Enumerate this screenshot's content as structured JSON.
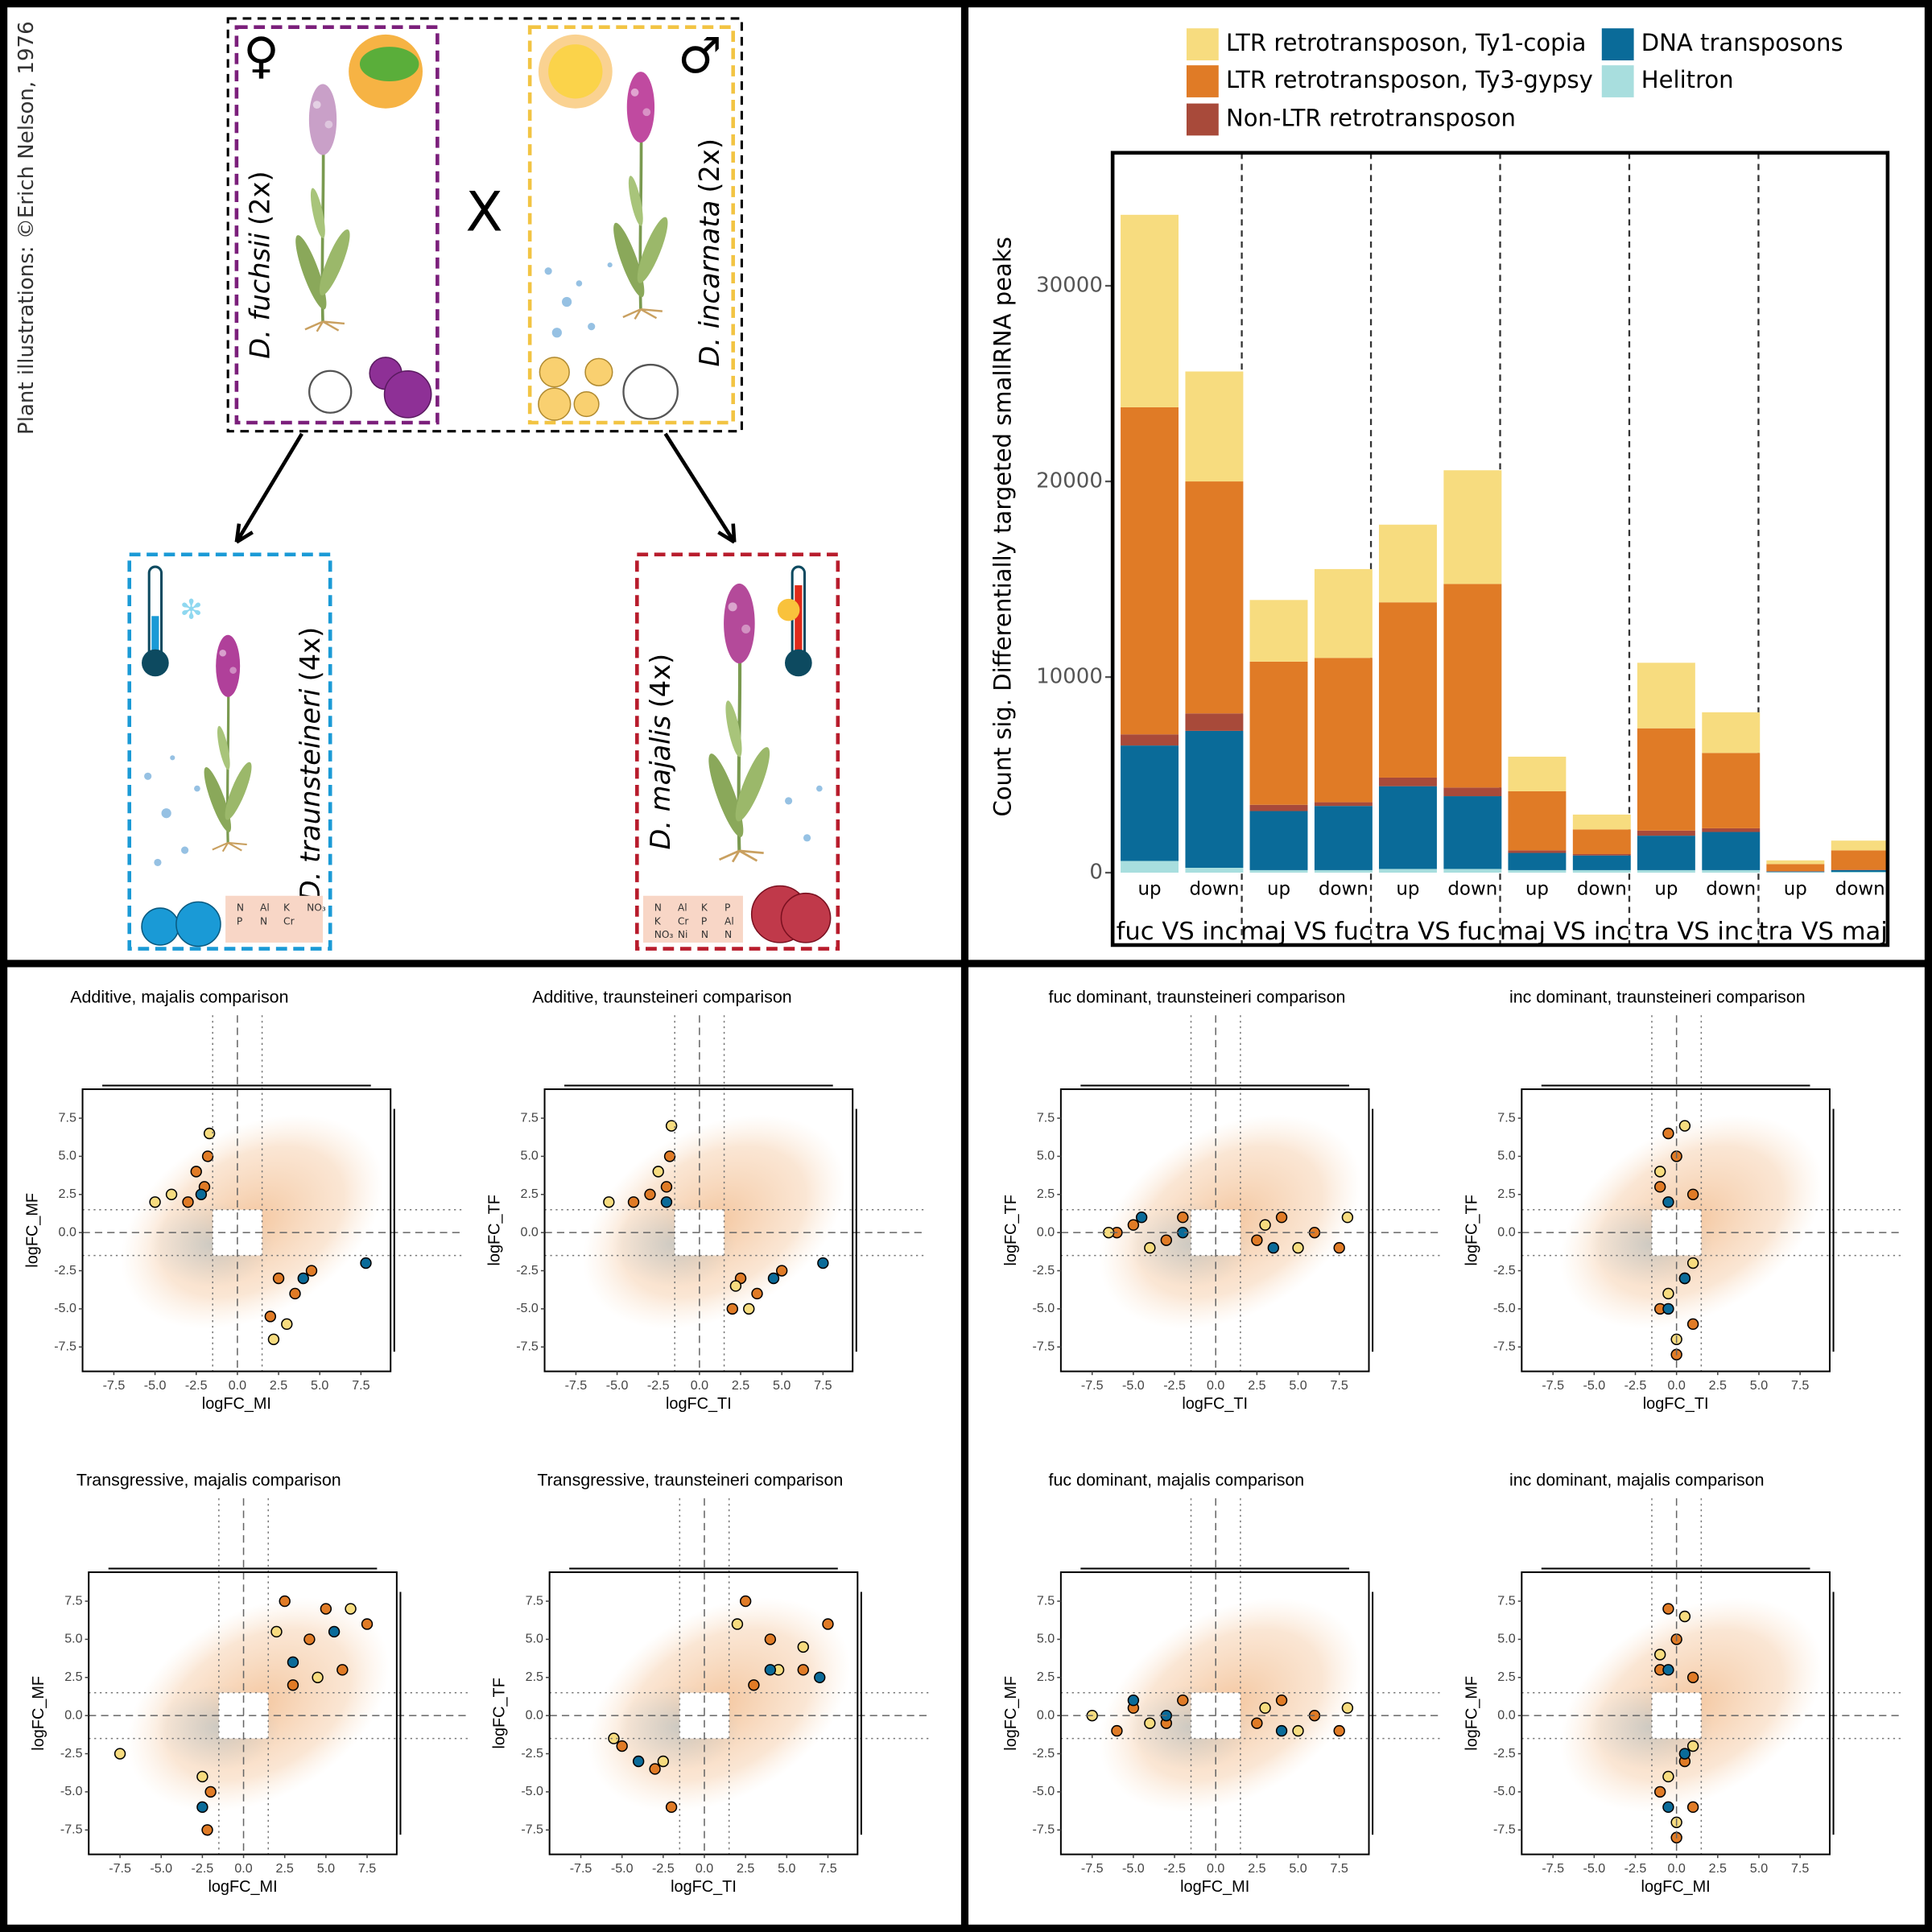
{
  "illustration": {
    "credit": "Plant illustrations: ©Erich Nelson, 1976",
    "female": "♀",
    "male": "♂",
    "cross": "X",
    "species": [
      {
        "name": "D. fuchsii",
        "ploidy": "(2x)"
      },
      {
        "name": "D. incarnata",
        "ploidy": "(2x)"
      },
      {
        "name": "D. traunsteineri",
        "ploidy": "(4x)"
      },
      {
        "name": "D. majalis",
        "ploidy": "(4x)"
      }
    ],
    "nutrients": [
      [
        "N",
        "Al",
        "K",
        "NO₃",
        "P",
        "N",
        "Cr"
      ],
      [
        "N",
        "Al",
        "K",
        "P",
        "K",
        "Cr",
        "P",
        "Al",
        "NO₃",
        "Ni",
        "N",
        "N"
      ]
    ]
  },
  "chart_data": [
    {
      "type": "bar",
      "stacked": true,
      "ylabel": "Count sig. Differentially targeted smallRNA peaks",
      "groups": [
        "fuc VS inc",
        "maj VS fuc",
        "tra VS fuc",
        "maj VS inc",
        "tra VS inc",
        "tra VS maj"
      ],
      "categories": [
        "up",
        "down",
        "up",
        "down",
        "up",
        "down",
        "up",
        "down",
        "up",
        "down",
        "up",
        "down"
      ],
      "ylim": [
        -3700,
        36800
      ],
      "yticks": [
        0,
        10000,
        20000,
        30000
      ],
      "series": [
        {
          "name": "Helitron",
          "color": "#a8dede",
          "values": [
            600,
            250,
            130,
            130,
            190,
            190,
            130,
            130,
            130,
            130,
            30,
            40
          ]
        },
        {
          "name": "DNA transposons",
          "color": "#0a6b99",
          "values": [
            5900,
            7000,
            3020,
            3280,
            4230,
            3720,
            880,
            750,
            1760,
            1950,
            30,
            90
          ]
        },
        {
          "name": "Non-LTR retrotransposon",
          "color": "#a84a3a",
          "values": [
            570,
            890,
            320,
            190,
            440,
            440,
            130,
            70,
            260,
            190,
            20,
            20
          ]
        },
        {
          "name": "LTR retrotransposon, Ty3-gypsy",
          "color": "#e07b26",
          "values": [
            16720,
            11860,
            7320,
            7380,
            8960,
            10410,
            3020,
            1260,
            5230,
            3850,
            360,
            990
          ]
        },
        {
          "name": "LTR retrotransposon, Ty1-copia",
          "color": "#f7dc7f",
          "values": [
            9840,
            5620,
            3150,
            4540,
            3970,
            5810,
            1770,
            760,
            3350,
            2080,
            190,
            500
          ]
        }
      ]
    },
    {
      "type": "scatter",
      "title": "Additive, majalis comparison",
      "xlabel": "logFC_MI",
      "ylabel": "logFC_MF",
      "xlim": [
        -9.4,
        9.3
      ],
      "ylim": [
        -9.1,
        9.4
      ],
      "xticks": [
        -7.5,
        {
          "value": -5,
          "label": "-5.0"
        },
        -2.5,
        {
          "value": 0,
          "label": "0.0"
        },
        2.5,
        {
          "value": 5,
          "label": "5.0"
        },
        7.5
      ],
      "yticks": [
        -7.5,
        {
          "value": -5,
          "label": "-5.0"
        },
        -2.5,
        {
          "value": 0,
          "label": "0.0"
        },
        2.5,
        {
          "value": 5,
          "label": "5.0"
        },
        7.5
      ],
      "threshold": 1.5,
      "series": [
        {
          "color": "#e07b26",
          "x": [
            -2,
            -3,
            -1.8,
            -2.5,
            2.5,
            3.5,
            2,
            4.5
          ],
          "values": [
            3,
            2,
            5,
            4,
            -3,
            -4,
            -5.5,
            -2.5
          ]
        },
        {
          "color": "#f7dc7f",
          "x": [
            -5,
            -4,
            -1.7,
            3,
            2.2
          ],
          "values": [
            2,
            2.5,
            6.5,
            -6,
            -7
          ]
        },
        {
          "color": "#0a6b99",
          "x": [
            -2.2,
            4,
            7.8
          ],
          "values": [
            2.5,
            -3,
            -2
          ]
        }
      ]
    },
    {
      "type": "scatter",
      "title": "Additive, traunsteineri comparison",
      "xlabel": "logFC_TI",
      "ylabel": "logFC_TF",
      "xlim": [
        -9.4,
        9.3
      ],
      "ylim": [
        -9.1,
        9.4
      ],
      "xticks": [
        -7.5,
        {
          "value": -5,
          "label": "-5.0"
        },
        -2.5,
        {
          "value": 0,
          "label": "0.0"
        },
        2.5,
        {
          "value": 5,
          "label": "5.0"
        },
        7.5
      ],
      "yticks": [
        -7.5,
        {
          "value": -5,
          "label": "-5.0"
        },
        -2.5,
        {
          "value": 0,
          "label": "0.0"
        },
        2.5,
        {
          "value": 5,
          "label": "5.0"
        },
        7.5
      ],
      "threshold": 1.5,
      "series": [
        {
          "color": "#e07b26",
          "x": [
            -2,
            -3,
            -1.8,
            -4,
            2.5,
            3.5,
            2,
            5
          ],
          "values": [
            3,
            2.5,
            5,
            2,
            -3,
            -4,
            -5,
            -2.5
          ]
        },
        {
          "color": "#f7dc7f",
          "x": [
            -5.5,
            -2.5,
            -1.7,
            3,
            2.2
          ],
          "values": [
            2,
            4,
            7,
            -5,
            -3.5
          ]
        },
        {
          "color": "#0a6b99",
          "x": [
            -2,
            4.5,
            7.5
          ],
          "values": [
            2,
            -3,
            -2
          ]
        }
      ]
    },
    {
      "type": "scatter",
      "title": "fuc dominant, traunsteineri comparison",
      "xlabel": "logFC_TI",
      "ylabel": "logFC_TF",
      "xlim": [
        -9.4,
        9.3
      ],
      "ylim": [
        -9.1,
        9.4
      ],
      "xticks": [
        -7.5,
        {
          "value": -5,
          "label": "-5.0"
        },
        -2.5,
        {
          "value": 0,
          "label": "0.0"
        },
        2.5,
        {
          "value": 5,
          "label": "5.0"
        },
        7.5
      ],
      "yticks": [
        -7.5,
        {
          "value": -5,
          "label": "-5.0"
        },
        -2.5,
        {
          "value": 0,
          "label": "0.0"
        },
        2.5,
        {
          "value": 5,
          "label": "5.0"
        },
        7.5
      ],
      "threshold": 1.5,
      "series": [
        {
          "color": "#e07b26",
          "x": [
            -5,
            -3,
            -2,
            -6,
            2.5,
            4,
            6,
            7.5
          ],
          "values": [
            0.5,
            -0.5,
            1,
            0,
            -0.5,
            1,
            0,
            -1
          ]
        },
        {
          "color": "#f7dc7f",
          "x": [
            -6.5,
            -4,
            3,
            5,
            8
          ],
          "values": [
            0,
            -1,
            0.5,
            -1,
            1
          ]
        },
        {
          "color": "#0a6b99",
          "x": [
            -2,
            -4.5,
            3.5
          ],
          "values": [
            0,
            1,
            -1
          ]
        }
      ]
    },
    {
      "type": "scatter",
      "title": "inc dominant, traunsteineri comparison",
      "xlabel": "logFC_TI",
      "ylabel": "logFC_TF",
      "xlim": [
        -9.4,
        9.3
      ],
      "ylim": [
        -9.1,
        9.4
      ],
      "xticks": [
        -7.5,
        {
          "value": -5,
          "label": "-5.0"
        },
        -2.5,
        {
          "value": 0,
          "label": "0.0"
        },
        2.5,
        {
          "value": 5,
          "label": "5.0"
        },
        7.5
      ],
      "yticks": [
        -7.5,
        {
          "value": -5,
          "label": "-5.0"
        },
        -2.5,
        {
          "value": 0,
          "label": "0.0"
        },
        2.5,
        {
          "value": 5,
          "label": "5.0"
        },
        7.5
      ],
      "threshold": 1.5,
      "series": [
        {
          "color": "#e07b26",
          "x": [
            -1,
            0,
            1,
            -0.5,
            0.5,
            -1,
            1,
            0
          ],
          "values": [
            3,
            5,
            2.5,
            6.5,
            -3,
            -5,
            -6,
            -8
          ]
        },
        {
          "color": "#f7dc7f",
          "x": [
            0.5,
            -1,
            1,
            -0.5,
            0
          ],
          "values": [
            7,
            4,
            -2,
            -4,
            -7
          ]
        },
        {
          "color": "#0a6b99",
          "x": [
            -0.5,
            0.5,
            -0.5
          ],
          "values": [
            2,
            -3,
            -5
          ]
        }
      ]
    },
    {
      "type": "scatter",
      "title": "Transgressive, majalis comparison",
      "xlabel": "logFC_MI",
      "ylabel": "logFC_MF",
      "xlim": [
        -9.4,
        9.3
      ],
      "ylim": [
        -9.1,
        9.4
      ],
      "xticks": [
        -7.5,
        {
          "value": -5,
          "label": "-5.0"
        },
        -2.5,
        {
          "value": 0,
          "label": "0.0"
        },
        2.5,
        {
          "value": 5,
          "label": "5.0"
        },
        7.5
      ],
      "yticks": [
        -7.5,
        {
          "value": -5,
          "label": "-5.0"
        },
        -2.5,
        {
          "value": 0,
          "label": "0.0"
        },
        2.5,
        {
          "value": 5,
          "label": "5.0"
        },
        7.5
      ],
      "threshold": 1.5,
      "series": [
        {
          "color": "#e07b26",
          "x": [
            2.5,
            4,
            6,
            7.5,
            3,
            5,
            -2,
            -2.2
          ],
          "values": [
            7.5,
            5,
            3,
            6,
            2,
            7,
            -5,
            -7.5
          ]
        },
        {
          "color": "#f7dc7f",
          "x": [
            2,
            6.5,
            -2.5,
            -7.5,
            4.5
          ],
          "values": [
            5.5,
            7,
            -4,
            -2.5,
            2.5
          ]
        },
        {
          "color": "#0a6b99",
          "x": [
            3,
            5.5,
            -2.5
          ],
          "values": [
            3.5,
            5.5,
            -6
          ]
        }
      ]
    },
    {
      "type": "scatter",
      "title": "Transgressive, traunsteineri comparison",
      "xlabel": "logFC_TI",
      "ylabel": "logFC_TF",
      "xlim": [
        -9.4,
        9.3
      ],
      "ylim": [
        -9.1,
        9.4
      ],
      "xticks": [
        -7.5,
        {
          "value": -5,
          "label": "-5.0"
        },
        -2.5,
        {
          "value": 0,
          "label": "0.0"
        },
        2.5,
        {
          "value": 5,
          "label": "5.0"
        },
        7.5
      ],
      "yticks": [
        -7.5,
        {
          "value": -5,
          "label": "-5.0"
        },
        -2.5,
        {
          "value": 0,
          "label": "0.0"
        },
        2.5,
        {
          "value": 5,
          "label": "5.0"
        },
        7.5
      ],
      "threshold": 1.5,
      "series": [
        {
          "color": "#e07b26",
          "x": [
            2.5,
            4,
            6,
            7.5,
            3,
            -2,
            -5,
            -3
          ],
          "values": [
            7.5,
            5,
            3,
            6,
            2,
            -6,
            -2,
            -3.5
          ]
        },
        {
          "color": "#f7dc7f",
          "x": [
            2,
            6,
            -5.5,
            -2.5,
            4.5
          ],
          "values": [
            6,
            4.5,
            -1.5,
            -3,
            3
          ]
        },
        {
          "color": "#0a6b99",
          "x": [
            4,
            -4,
            7
          ],
          "values": [
            3,
            -3,
            2.5
          ]
        }
      ]
    },
    {
      "type": "scatter",
      "title": "fuc dominant, majalis comparison",
      "xlabel": "logFC_MI",
      "ylabel": "logFC_MF",
      "xlim": [
        -9.4,
        9.3
      ],
      "ylim": [
        -9.1,
        9.4
      ],
      "xticks": [
        -7.5,
        {
          "value": -5,
          "label": "-5.0"
        },
        -2.5,
        {
          "value": 0,
          "label": "0.0"
        },
        2.5,
        {
          "value": 5,
          "label": "5.0"
        },
        7.5
      ],
      "yticks": [
        -7.5,
        {
          "value": -5,
          "label": "-5.0"
        },
        -2.5,
        {
          "value": 0,
          "label": "0.0"
        },
        2.5,
        {
          "value": 5,
          "label": "5.0"
        },
        7.5
      ],
      "threshold": 1.5,
      "series": [
        {
          "color": "#e07b26",
          "x": [
            -5,
            -3,
            -2,
            -6,
            2.5,
            4,
            6,
            7.5
          ],
          "values": [
            0.5,
            -0.5,
            1,
            -1,
            -0.5,
            1,
            0,
            -1
          ]
        },
        {
          "color": "#f7dc7f",
          "x": [
            -7.5,
            -4,
            3,
            5,
            8
          ],
          "values": [
            0,
            -0.5,
            0.5,
            -1,
            0.5
          ]
        },
        {
          "color": "#0a6b99",
          "x": [
            -3,
            -5,
            4
          ],
          "values": [
            0,
            1,
            -1
          ]
        }
      ]
    },
    {
      "type": "scatter",
      "title": "inc dominant, majalis comparison",
      "xlabel": "logFC_MI",
      "ylabel": "logFC_MF",
      "xlim": [
        -9.4,
        9.3
      ],
      "ylim": [
        -9.1,
        9.4
      ],
      "xticks": [
        -7.5,
        {
          "value": -5,
          "label": "-5.0"
        },
        -2.5,
        {
          "value": 0,
          "label": "0.0"
        },
        2.5,
        {
          "value": 5,
          "label": "5.0"
        },
        7.5
      ],
      "yticks": [
        -7.5,
        {
          "value": -5,
          "label": "-5.0"
        },
        -2.5,
        {
          "value": 0,
          "label": "0.0"
        },
        2.5,
        {
          "value": 5,
          "label": "5.0"
        },
        7.5
      ],
      "threshold": 1.5,
      "series": [
        {
          "color": "#e07b26",
          "x": [
            -1,
            0,
            1,
            -0.5,
            0.5,
            -1,
            1,
            0
          ],
          "values": [
            3,
            5,
            2.5,
            7,
            -3,
            -5,
            -6,
            -8
          ]
        },
        {
          "color": "#f7dc7f",
          "x": [
            0.5,
            -1,
            1,
            -0.5,
            0
          ],
          "values": [
            6.5,
            4,
            -2,
            -4,
            -7
          ]
        },
        {
          "color": "#0a6b99",
          "x": [
            -0.5,
            0.5,
            -0.5
          ],
          "values": [
            3,
            -2.5,
            -6
          ]
        }
      ]
    }
  ]
}
